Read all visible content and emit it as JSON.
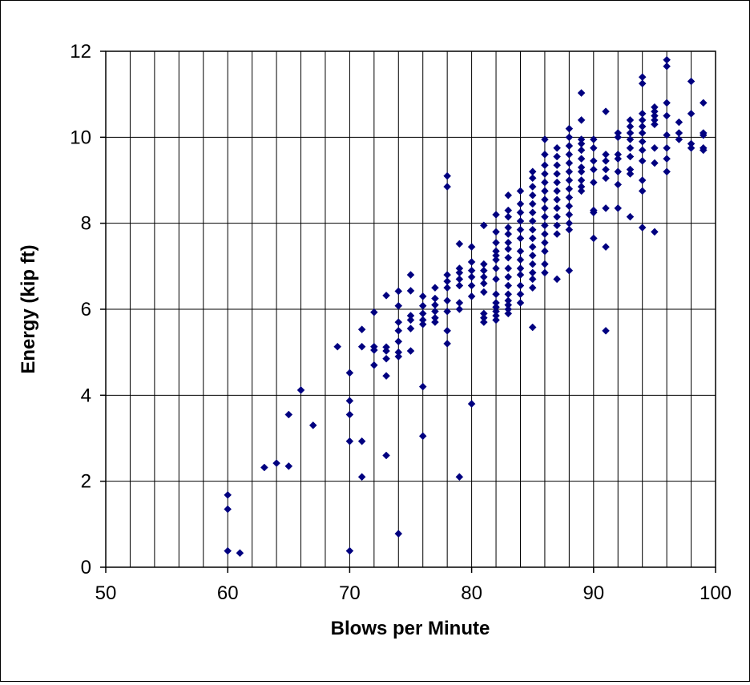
{
  "chart_data": {
    "type": "scatter",
    "title": "",
    "xlabel": "Blows per Minute",
    "ylabel": "Energy (kip ft)",
    "xlim": [
      50,
      100
    ],
    "ylim": [
      0,
      12
    ],
    "x_ticks": [
      "50",
      "60",
      "70",
      "80",
      "90",
      "100"
    ],
    "y_ticks": [
      "0",
      "2",
      "4",
      "6",
      "8",
      "10",
      "12"
    ],
    "x_gridline_step": 2,
    "y_gridline_step": 2,
    "grid": true,
    "legend": "none",
    "marker": "diamond",
    "marker_color": "#000080",
    "points": [
      [
        60,
        1.68
      ],
      [
        60,
        1.35
      ],
      [
        60,
        0.38
      ],
      [
        61,
        0.33
      ],
      [
        63,
        2.32
      ],
      [
        64,
        2.42
      ],
      [
        65,
        2.35
      ],
      [
        65,
        3.55
      ],
      [
        66,
        4.12
      ],
      [
        67,
        3.3
      ],
      [
        69,
        5.13
      ],
      [
        70,
        4.52
      ],
      [
        70,
        3.87
      ],
      [
        70,
        3.55
      ],
      [
        70,
        2.93
      ],
      [
        70,
        0.38
      ],
      [
        71,
        5.53
      ],
      [
        71,
        5.13
      ],
      [
        71,
        2.93
      ],
      [
        71,
        2.1
      ],
      [
        72,
        5.93
      ],
      [
        72,
        5.13
      ],
      [
        72,
        5.05
      ],
      [
        72,
        4.7
      ],
      [
        73,
        6.32
      ],
      [
        73,
        5.12
      ],
      [
        73,
        5.03
      ],
      [
        73,
        4.85
      ],
      [
        73,
        4.45
      ],
      [
        73,
        2.6
      ],
      [
        74,
        6.42
      ],
      [
        74,
        6.08
      ],
      [
        74,
        5.7
      ],
      [
        74,
        5.5
      ],
      [
        74,
        5.25
      ],
      [
        74,
        5.0
      ],
      [
        74,
        4.9
      ],
      [
        74,
        0.78
      ],
      [
        75,
        6.8
      ],
      [
        75,
        6.43
      ],
      [
        75,
        5.85
      ],
      [
        75,
        5.75
      ],
      [
        75,
        5.55
      ],
      [
        75,
        5.03
      ],
      [
        76,
        6.3
      ],
      [
        76,
        6.08
      ],
      [
        76,
        5.9
      ],
      [
        76,
        5.75
      ],
      [
        76,
        5.65
      ],
      [
        76,
        4.2
      ],
      [
        76,
        3.05
      ],
      [
        77,
        6.5
      ],
      [
        77,
        6.25
      ],
      [
        77,
        6.1
      ],
      [
        77,
        5.95
      ],
      [
        77,
        5.8
      ],
      [
        77,
        5.7
      ],
      [
        78,
        9.1
      ],
      [
        78,
        8.85
      ],
      [
        78,
        6.8
      ],
      [
        78,
        6.65
      ],
      [
        78,
        6.5
      ],
      [
        78,
        6.2
      ],
      [
        78,
        5.95
      ],
      [
        78,
        5.5
      ],
      [
        78,
        5.2
      ],
      [
        79,
        7.52
      ],
      [
        79,
        6.95
      ],
      [
        79,
        6.85
      ],
      [
        79,
        6.7
      ],
      [
        79,
        6.55
      ],
      [
        79,
        6.15
      ],
      [
        79,
        6.0
      ],
      [
        79,
        2.1
      ],
      [
        80,
        7.45
      ],
      [
        80,
        7.1
      ],
      [
        80,
        6.9
      ],
      [
        80,
        6.75
      ],
      [
        80,
        6.55
      ],
      [
        80,
        6.3
      ],
      [
        80,
        3.8
      ],
      [
        81,
        7.95
      ],
      [
        81,
        7.05
      ],
      [
        81,
        6.9
      ],
      [
        81,
        6.75
      ],
      [
        81,
        6.6
      ],
      [
        81,
        6.4
      ],
      [
        81,
        5.9
      ],
      [
        81,
        5.8
      ],
      [
        81,
        5.7
      ],
      [
        82,
        8.2
      ],
      [
        82,
        7.8
      ],
      [
        82,
        7.55
      ],
      [
        82,
        7.35
      ],
      [
        82,
        7.25
      ],
      [
        82,
        7.15
      ],
      [
        82,
        6.95
      ],
      [
        82,
        6.7
      ],
      [
        82,
        6.35
      ],
      [
        82,
        6.15
      ],
      [
        82,
        6.05
      ],
      [
        82,
        5.95
      ],
      [
        82,
        5.85
      ],
      [
        82,
        5.75
      ],
      [
        83,
        8.65
      ],
      [
        83,
        8.3
      ],
      [
        83,
        8.15
      ],
      [
        83,
        7.9
      ],
      [
        83,
        7.75
      ],
      [
        83,
        7.55
      ],
      [
        83,
        7.4
      ],
      [
        83,
        7.2
      ],
      [
        83,
        6.95
      ],
      [
        83,
        6.75
      ],
      [
        83,
        6.55
      ],
      [
        83,
        6.35
      ],
      [
        83,
        6.2
      ],
      [
        83,
        6.1
      ],
      [
        83,
        6.0
      ],
      [
        83,
        5.9
      ],
      [
        84,
        8.75
      ],
      [
        84,
        8.45
      ],
      [
        84,
        8.25
      ],
      [
        84,
        8.05
      ],
      [
        84,
        7.85
      ],
      [
        84,
        7.65
      ],
      [
        84,
        7.35
      ],
      [
        84,
        7.15
      ],
      [
        84,
        6.95
      ],
      [
        84,
        6.8
      ],
      [
        84,
        6.55
      ],
      [
        84,
        6.35
      ],
      [
        84,
        6.15
      ],
      [
        85,
        9.2
      ],
      [
        85,
        9.05
      ],
      [
        85,
        8.85
      ],
      [
        85,
        8.65
      ],
      [
        85,
        8.45
      ],
      [
        85,
        8.25
      ],
      [
        85,
        8.05
      ],
      [
        85,
        7.85
      ],
      [
        85,
        7.65
      ],
      [
        85,
        7.45
      ],
      [
        85,
        7.25
      ],
      [
        85,
        7.05
      ],
      [
        85,
        6.85
      ],
      [
        85,
        6.7
      ],
      [
        85,
        6.5
      ],
      [
        85,
        5.58
      ],
      [
        86,
        9.95
      ],
      [
        86,
        9.6
      ],
      [
        86,
        9.35
      ],
      [
        86,
        9.15
      ],
      [
        86,
        8.95
      ],
      [
        86,
        8.75
      ],
      [
        86,
        8.55
      ],
      [
        86,
        8.35
      ],
      [
        86,
        8.15
      ],
      [
        86,
        7.95
      ],
      [
        86,
        7.75
      ],
      [
        86,
        7.55
      ],
      [
        86,
        7.35
      ],
      [
        86,
        7.05
      ],
      [
        86,
        6.85
      ],
      [
        87,
        9.75
      ],
      [
        87,
        9.55
      ],
      [
        87,
        9.35
      ],
      [
        87,
        9.15
      ],
      [
        87,
        8.95
      ],
      [
        87,
        8.75
      ],
      [
        87,
        8.55
      ],
      [
        87,
        8.35
      ],
      [
        87,
        8.15
      ],
      [
        87,
        7.95
      ],
      [
        87,
        7.75
      ],
      [
        87,
        6.7
      ],
      [
        88,
        10.2
      ],
      [
        88,
        10.0
      ],
      [
        88,
        9.8
      ],
      [
        88,
        9.6
      ],
      [
        88,
        9.4
      ],
      [
        88,
        9.2
      ],
      [
        88,
        9.0
      ],
      [
        88,
        8.8
      ],
      [
        88,
        8.6
      ],
      [
        88,
        8.4
      ],
      [
        88,
        8.2
      ],
      [
        88,
        8.0
      ],
      [
        88,
        7.85
      ],
      [
        88,
        6.9
      ],
      [
        89,
        11.03
      ],
      [
        89,
        10.4
      ],
      [
        89,
        9.95
      ],
      [
        89,
        9.85
      ],
      [
        89,
        9.7
      ],
      [
        89,
        9.5
      ],
      [
        89,
        9.3
      ],
      [
        89,
        9.2
      ],
      [
        89,
        9.0
      ],
      [
        89,
        8.85
      ],
      [
        89,
        8.75
      ],
      [
        90,
        9.95
      ],
      [
        90,
        9.75
      ],
      [
        90,
        9.45
      ],
      [
        90,
        9.25
      ],
      [
        90,
        8.95
      ],
      [
        90,
        8.3
      ],
      [
        90,
        8.25
      ],
      [
        90,
        7.65
      ],
      [
        91,
        10.6
      ],
      [
        91,
        9.6
      ],
      [
        91,
        9.45
      ],
      [
        91,
        9.25
      ],
      [
        91,
        9.05
      ],
      [
        91,
        8.35
      ],
      [
        91,
        7.45
      ],
      [
        91,
        5.5
      ],
      [
        92,
        10.1
      ],
      [
        92,
        10.0
      ],
      [
        92,
        9.6
      ],
      [
        92,
        9.5
      ],
      [
        92,
        9.2
      ],
      [
        92,
        8.9
      ],
      [
        92,
        8.35
      ],
      [
        93,
        10.4
      ],
      [
        93,
        10.25
      ],
      [
        93,
        10.1
      ],
      [
        93,
        9.95
      ],
      [
        93,
        9.75
      ],
      [
        93,
        9.55
      ],
      [
        93,
        9.25
      ],
      [
        93,
        9.15
      ],
      [
        93,
        8.15
      ],
      [
        94,
        11.4
      ],
      [
        94,
        11.25
      ],
      [
        94,
        10.55
      ],
      [
        94,
        10.4
      ],
      [
        94,
        10.25
      ],
      [
        94,
        10.1
      ],
      [
        94,
        9.9
      ],
      [
        94,
        9.7
      ],
      [
        94,
        9.45
      ],
      [
        94,
        9.0
      ],
      [
        94,
        8.75
      ],
      [
        94,
        7.9
      ],
      [
        95,
        10.7
      ],
      [
        95,
        10.6
      ],
      [
        95,
        10.5
      ],
      [
        95,
        10.4
      ],
      [
        95,
        10.3
      ],
      [
        95,
        9.75
      ],
      [
        95,
        9.4
      ],
      [
        95,
        7.8
      ],
      [
        96,
        11.8
      ],
      [
        96,
        11.65
      ],
      [
        96,
        10.8
      ],
      [
        96,
        10.5
      ],
      [
        96,
        10.05
      ],
      [
        96,
        9.75
      ],
      [
        96,
        9.5
      ],
      [
        96,
        9.2
      ],
      [
        97,
        10.35
      ],
      [
        97,
        10.1
      ],
      [
        97,
        9.95
      ],
      [
        98,
        11.3
      ],
      [
        98,
        10.55
      ],
      [
        98,
        9.85
      ],
      [
        98,
        9.75
      ],
      [
        99,
        10.8
      ],
      [
        99,
        10.1
      ],
      [
        99,
        10.05
      ],
      [
        99,
        9.75
      ],
      [
        99,
        9.7
      ]
    ]
  }
}
